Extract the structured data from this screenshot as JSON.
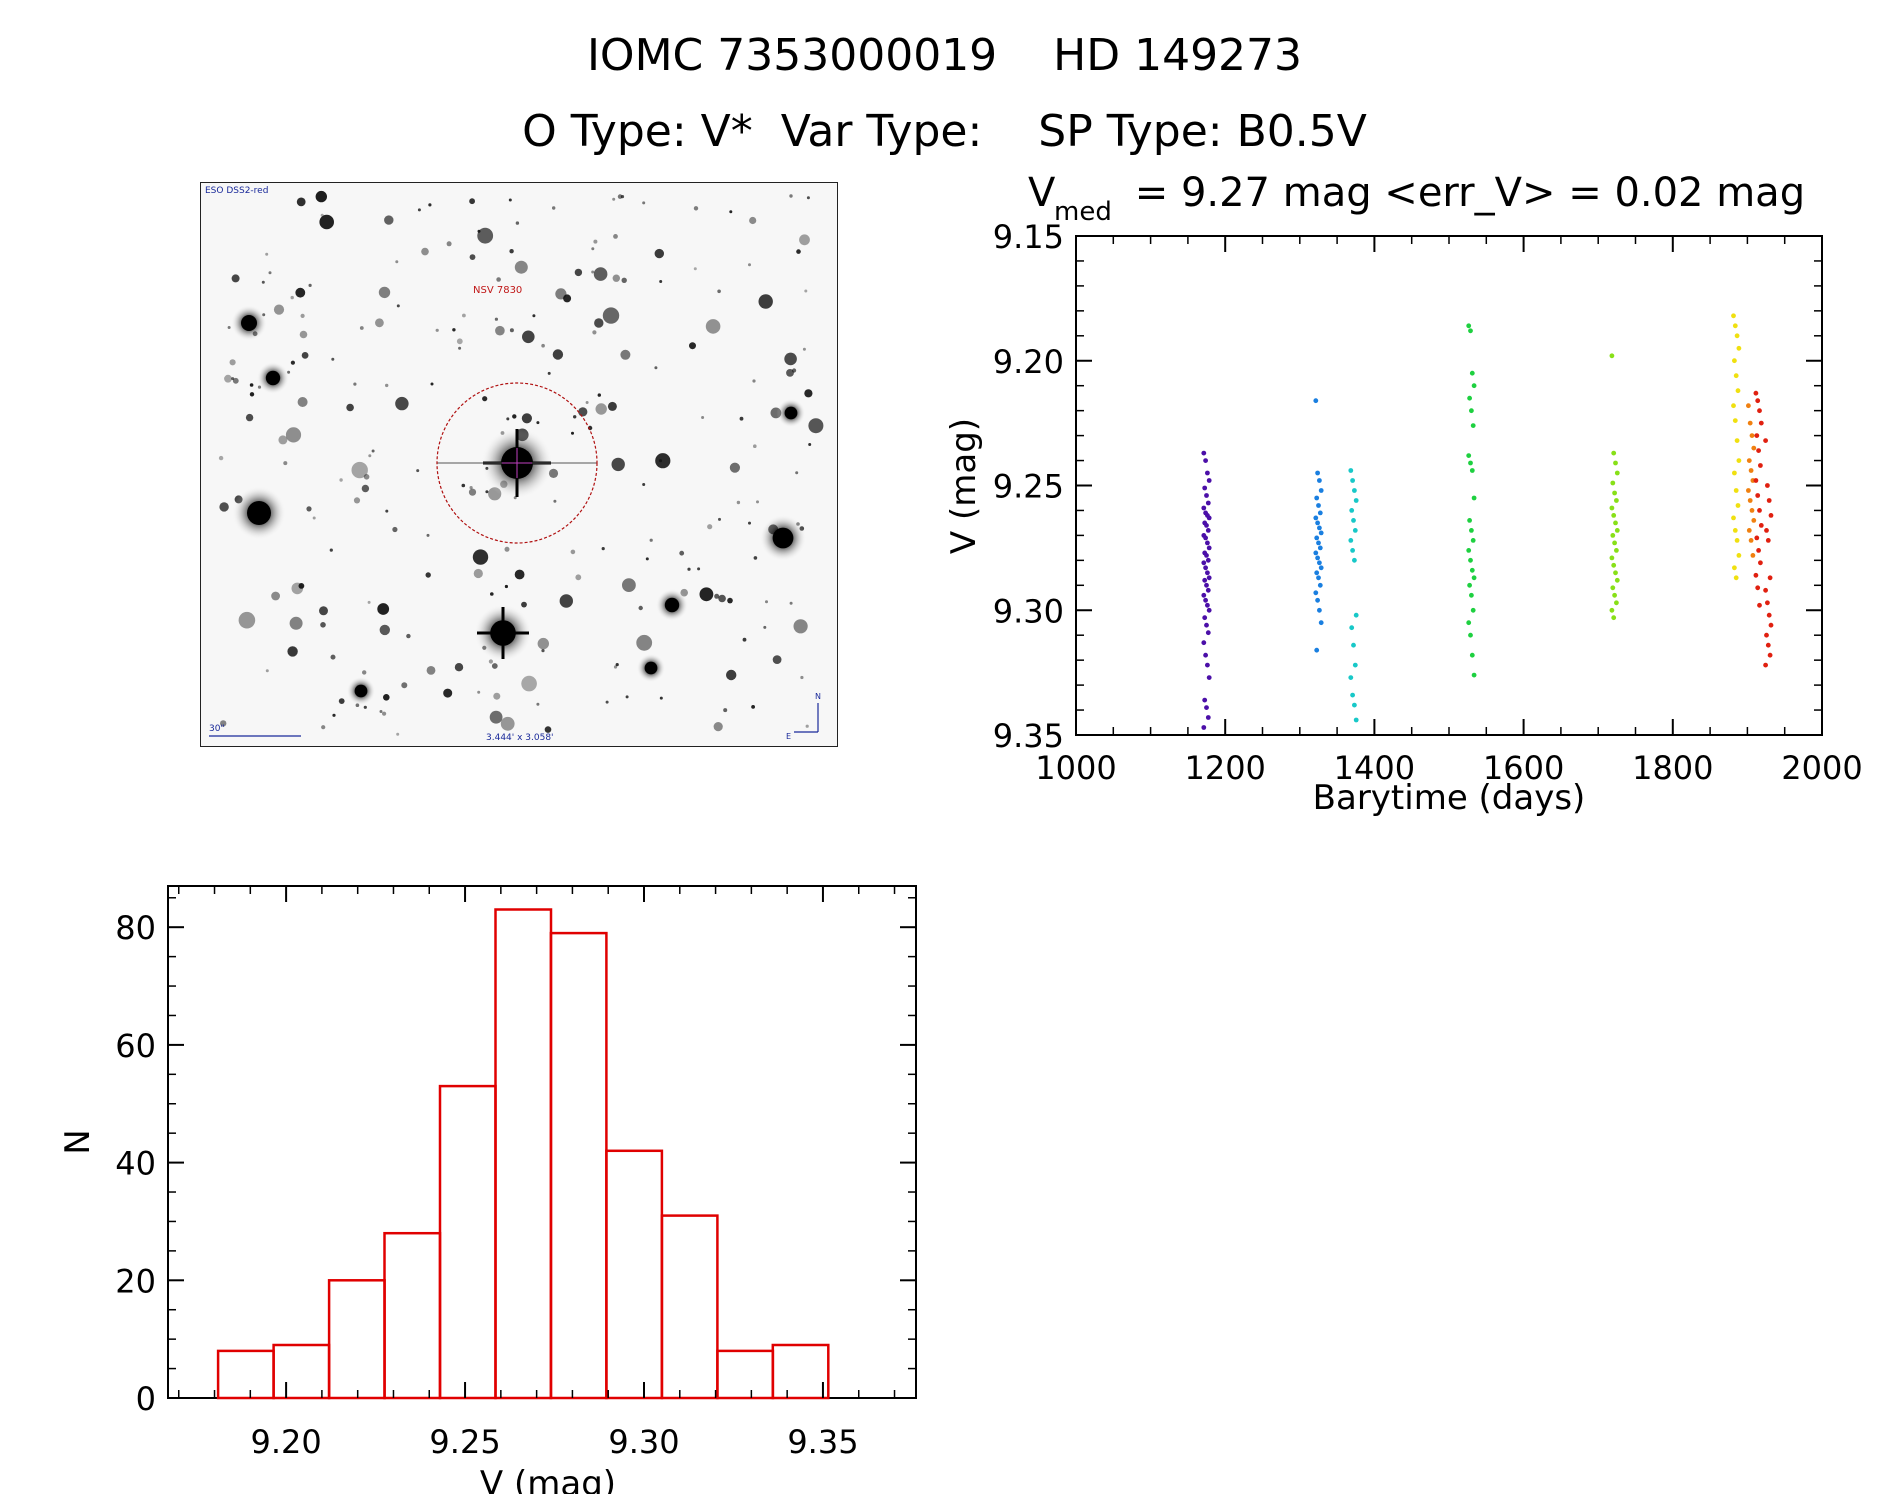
{
  "header": {
    "line1": "IOMC 7353000019    HD 149273",
    "line2": "O Type: V*  Var Type:    SP Type: B0.5V"
  },
  "finder_chart": {
    "survey_label": "ESO DSS2-red",
    "target_label": "NSV 7830",
    "scale_label": "30\"",
    "fov_label": "3.444' x 3.058'",
    "north_label": "N",
    "east_label": "E",
    "label_color": "#1a2a9a",
    "target_color": "#c01818"
  },
  "chart_data": [
    {
      "type": "scatter",
      "title_main": "V",
      "title_sub": "med",
      "title_rest": " = 9.27 mag <err_V> = 0.02 mag",
      "xlabel": "Barytime (days)",
      "ylabel": "V (mag)",
      "xlim": [
        1000,
        2000
      ],
      "ylim": [
        9.15,
        9.35
      ],
      "y_inverted": true,
      "xticks": [
        "1000",
        "1200",
        "1400",
        "1600",
        "1800",
        "2000"
      ],
      "yticks": [
        "9.15",
        "9.20",
        "9.25",
        "9.30",
        "9.35"
      ],
      "series": [
        {
          "color": "#4b0fa8",
          "x": 1175,
          "y": [
            9.237,
            9.24,
            9.245,
            9.248,
            9.251,
            9.254,
            9.257,
            9.259,
            9.261,
            9.262,
            9.263,
            9.265,
            9.266,
            9.268,
            9.27,
            9.271,
            9.273,
            9.275,
            9.277,
            9.278,
            9.28,
            9.281,
            9.283,
            9.285,
            9.287,
            9.288,
            9.29,
            9.292,
            9.294,
            9.296,
            9.298,
            9.3,
            9.303,
            9.306,
            9.309,
            9.313,
            9.318,
            9.322,
            9.327,
            9.336,
            9.339,
            9.343,
            9.347
          ]
        },
        {
          "color": "#1a7fe0",
          "x": 1325,
          "y": [
            9.216,
            9.245,
            9.248,
            9.252,
            9.255,
            9.258,
            9.261,
            9.263,
            9.265,
            9.267,
            9.269,
            9.271,
            9.273,
            9.275,
            9.277,
            9.279,
            9.281,
            9.283,
            9.285,
            9.287,
            9.29,
            9.293,
            9.296,
            9.3,
            9.305,
            9.316
          ]
        },
        {
          "color": "#18c8c8",
          "x": 1372,
          "y": [
            9.244,
            9.248,
            9.252,
            9.256,
            9.26,
            9.264,
            9.268,
            9.272,
            9.276,
            9.28,
            9.302,
            9.307,
            9.314,
            9.322,
            9.327,
            9.334,
            9.338,
            9.344
          ]
        },
        {
          "color": "#1ed040",
          "x": 1530,
          "y": [
            9.186,
            9.188,
            9.205,
            9.21,
            9.215,
            9.22,
            9.226,
            9.238,
            9.241,
            9.244,
            9.255,
            9.264,
            9.268,
            9.272,
            9.276,
            9.28,
            9.284,
            9.287,
            9.29,
            9.294,
            9.3,
            9.305,
            9.31,
            9.318,
            9.326
          ]
        },
        {
          "color": "#88e018",
          "x": 1722,
          "y": [
            9.198,
            9.237,
            9.241,
            9.245,
            9.249,
            9.253,
            9.256,
            9.259,
            9.262,
            9.265,
            9.268,
            9.27,
            9.273,
            9.276,
            9.279,
            9.282,
            9.285,
            9.288,
            9.291,
            9.294,
            9.297,
            9.3,
            9.303
          ]
        },
        {
          "color": "#f0e010",
          "x": 1885,
          "y": [
            9.182,
            9.186,
            9.19,
            9.195,
            9.2,
            9.206,
            9.212,
            9.218,
            9.224,
            9.232,
            9.24,
            9.245,
            9.252,
            9.258,
            9.263,
            9.268,
            9.272,
            9.278,
            9.283,
            9.287
          ]
        },
        {
          "color": "#f08010",
          "x": 1905,
          "y": [
            9.218,
            9.225,
            9.23,
            9.235,
            9.24,
            9.244,
            9.248,
            9.252,
            9.256,
            9.26,
            9.264,
            9.268,
            9.272,
            9.278
          ]
        },
        {
          "color": "#e02010",
          "x": 1915,
          "y": [
            9.213,
            9.216,
            9.22,
            9.225,
            9.23,
            9.236,
            9.242,
            9.248,
            9.254,
            9.26,
            9.266,
            9.271,
            9.276,
            9.281,
            9.286,
            9.291,
            9.298
          ]
        },
        {
          "color": "#e02010",
          "x": 1928,
          "y": [
            9.232,
            9.25,
            9.256,
            9.262,
            9.268,
            9.272,
            9.287,
            9.292,
            9.297,
            9.302,
            9.306,
            9.31,
            9.314,
            9.318,
            9.322
          ]
        }
      ]
    },
    {
      "type": "bar",
      "xlabel": "V (mag)",
      "ylabel": "N",
      "xlim": [
        9.167,
        9.376
      ],
      "ylim": [
        0,
        87
      ],
      "bin_edges": [
        9.181,
        9.1965,
        9.212,
        9.2275,
        9.243,
        9.2585,
        9.274,
        9.2895,
        9.305,
        9.3205,
        9.336,
        9.3515
      ],
      "values": [
        8,
        9,
        20,
        28,
        53,
        83,
        79,
        42,
        31,
        8,
        9
      ],
      "xticks": [
        "9.20",
        "9.25",
        "9.30",
        "9.35"
      ],
      "yticks": [
        "0",
        "20",
        "40",
        "60",
        "80"
      ],
      "bar_color": "#e00000"
    }
  ]
}
